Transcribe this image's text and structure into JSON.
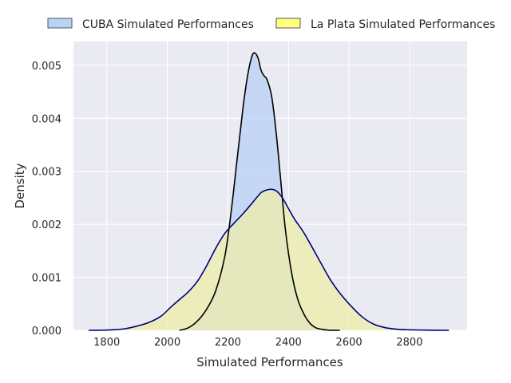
{
  "chart_data": {
    "type": "area",
    "xlabel": "Simulated Performances",
    "ylabel": "Density",
    "xlim": [
      1690,
      2990
    ],
    "ylim": [
      0,
      0.00545
    ],
    "x_ticks": [
      1800,
      2000,
      2200,
      2400,
      2600,
      2800
    ],
    "x_tick_labels": [
      "1800",
      "2000",
      "2200",
      "2400",
      "2600",
      "2800"
    ],
    "y_ticks": [
      0,
      0.001,
      0.002,
      0.003,
      0.004,
      0.005
    ],
    "y_tick_labels": [
      "0.000",
      "0.001",
      "0.002",
      "0.003",
      "0.004",
      "0.005"
    ],
    "grid": true,
    "legend_position": "top",
    "series": [
      {
        "name": "CUBA Simulated Performances",
        "fill": "#b8d0f4",
        "legend_fill": "#b8d4f5",
        "line": "#000000",
        "x": [
          2040,
          2070,
          2100,
          2130,
          2160,
          2190,
          2210,
          2230,
          2250,
          2265,
          2280,
          2290,
          2300,
          2310,
          2320,
          2330,
          2345,
          2360,
          2375,
          2390,
          2410,
          2430,
          2450,
          2470,
          2490,
          2510,
          2530,
          2550,
          2570
        ],
        "y": [
          0,
          5e-05,
          0.00018,
          0.0004,
          0.00075,
          0.0014,
          0.0022,
          0.0032,
          0.0042,
          0.0048,
          0.00518,
          0.00523,
          0.00513,
          0.0049,
          0.0048,
          0.00472,
          0.0044,
          0.0037,
          0.0028,
          0.0019,
          0.0011,
          0.0006,
          0.00032,
          0.00014,
          5e-05,
          2e-05,
          5e-06,
          1e-06,
          0
        ]
      },
      {
        "name": "La Plata Simulated Performances",
        "fill": "#eeeeaa",
        "legend_fill": "#ffff80",
        "line": "#000080",
        "x": [
          1740,
          1780,
          1820,
          1860,
          1900,
          1940,
          1980,
          2010,
          2040,
          2070,
          2100,
          2130,
          2160,
          2190,
          2220,
          2250,
          2280,
          2310,
          2330,
          2345,
          2360,
          2380,
          2400,
          2420,
          2450,
          2480,
          2510,
          2540,
          2570,
          2600,
          2640,
          2680,
          2720,
          2760,
          2800,
          2850,
          2900,
          2930
        ],
        "y": [
          0,
          3e-06,
          1e-05,
          3e-05,
          8e-05,
          0.00015,
          0.00027,
          0.00043,
          0.00058,
          0.00073,
          0.00093,
          0.00122,
          0.00155,
          0.00183,
          0.00202,
          0.0022,
          0.0024,
          0.0026,
          0.00265,
          0.00266,
          0.00263,
          0.0025,
          0.0023,
          0.0021,
          0.00185,
          0.00155,
          0.00124,
          0.00094,
          0.0007,
          0.0005,
          0.00027,
          0.00012,
          5e-05,
          2e-05,
          1e-05,
          4e-06,
          1e-06,
          0
        ]
      }
    ]
  }
}
